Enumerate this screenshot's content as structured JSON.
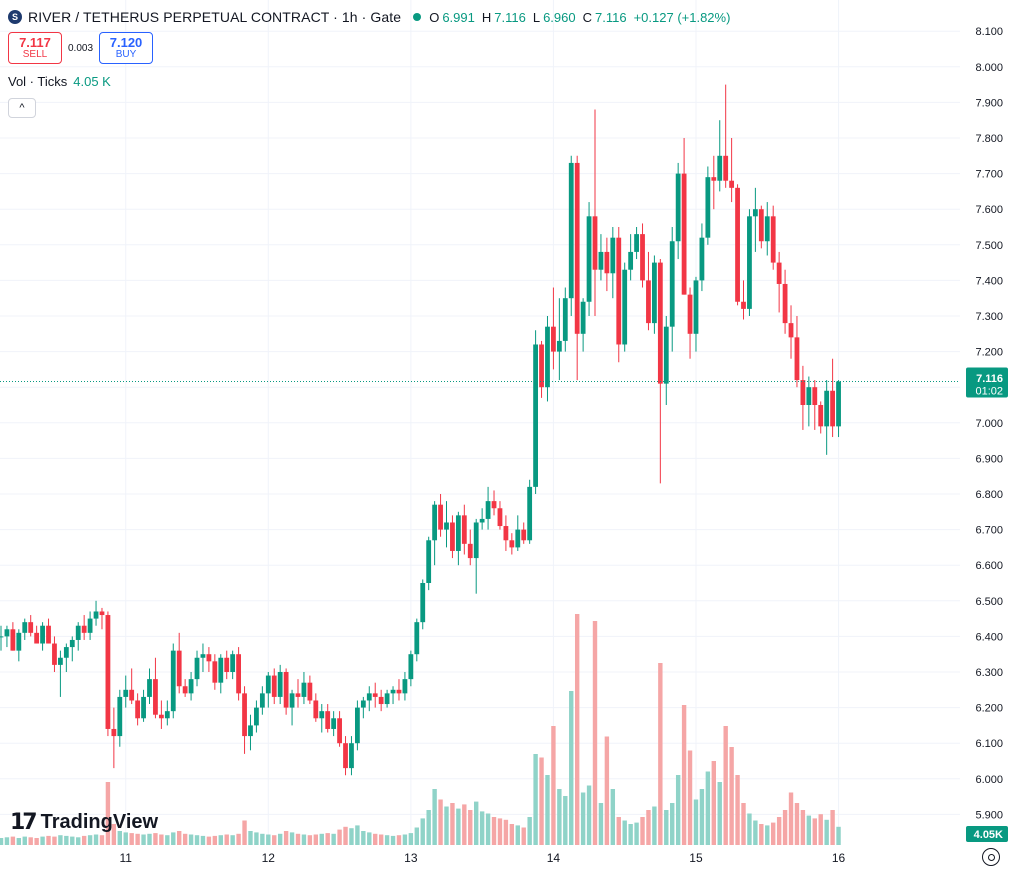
{
  "header": {
    "title": "RIVER / TETHERUS PERPETUAL CONTRACT · 1h · Gate",
    "ohlc": [
      {
        "k": "O",
        "v": "6.991"
      },
      {
        "k": "H",
        "v": "7.116"
      },
      {
        "k": "L",
        "v": "6.960"
      },
      {
        "k": "C",
        "v": "7.116"
      }
    ],
    "change": "+0.127 (+1.82%)"
  },
  "trade": {
    "sell_price": "7.117",
    "sell_label": "SELL",
    "spread": "0.003",
    "buy_price": "7.120",
    "buy_label": "BUY"
  },
  "volume_legend": {
    "label": "Vol · Ticks",
    "value": "4.05 K"
  },
  "collapse_icon": "^",
  "logo": {
    "mark": "17",
    "text": "TradingView"
  },
  "price_tag": {
    "price": "7.116",
    "countdown": "01:02"
  },
  "volume_tag": "4.05K",
  "colors": {
    "up": "#089981",
    "down": "#f23645",
    "vol_up": "#8fd3c8",
    "vol_down": "#f5a6a6"
  },
  "chart_data": {
    "type": "candlestick",
    "y_ticks": [
      "5.900",
      "6.000",
      "6.100",
      "6.200",
      "6.300",
      "6.400",
      "6.500",
      "6.600",
      "6.700",
      "6.800",
      "6.900",
      "7.000",
      "7.100",
      "7.200",
      "7.300",
      "7.400",
      "7.500",
      "7.600",
      "7.700",
      "7.800",
      "7.900",
      "8.000",
      "8.100"
    ],
    "ylim": [
      5.87,
      8.1
    ],
    "x_ticks": [
      {
        "label": "11",
        "index": 21
      },
      {
        "label": "12",
        "index": 45
      },
      {
        "label": "13",
        "index": 69
      },
      {
        "label": "14",
        "index": 93
      },
      {
        "label": "15",
        "index": 117
      },
      {
        "label": "16",
        "index": 141
      }
    ],
    "candles": [
      [
        6.4,
        6.43,
        6.36,
        6.4,
        1.0
      ],
      [
        6.4,
        6.43,
        6.37,
        6.42,
        1.1
      ],
      [
        6.42,
        6.44,
        6.36,
        6.36,
        1.2
      ],
      [
        6.36,
        6.42,
        6.33,
        6.41,
        1.0
      ],
      [
        6.41,
        6.45,
        6.39,
        6.44,
        1.2
      ],
      [
        6.44,
        6.46,
        6.4,
        6.41,
        1.1
      ],
      [
        6.41,
        6.43,
        6.38,
        6.38,
        1.0
      ],
      [
        6.38,
        6.44,
        6.36,
        6.43,
        1.2
      ],
      [
        6.43,
        6.45,
        6.38,
        6.38,
        1.3
      ],
      [
        6.38,
        6.4,
        6.3,
        6.32,
        1.2
      ],
      [
        6.32,
        6.36,
        6.23,
        6.34,
        1.4
      ],
      [
        6.34,
        6.38,
        6.3,
        6.37,
        1.3
      ],
      [
        6.37,
        6.4,
        6.33,
        6.39,
        1.2
      ],
      [
        6.39,
        6.44,
        6.36,
        6.43,
        1.1
      ],
      [
        6.43,
        6.46,
        6.39,
        6.41,
        1.3
      ],
      [
        6.41,
        6.47,
        6.39,
        6.45,
        1.4
      ],
      [
        6.45,
        6.5,
        6.43,
        6.47,
        1.5
      ],
      [
        6.47,
        6.48,
        6.42,
        6.46,
        1.4
      ],
      [
        6.46,
        6.47,
        6.12,
        6.14,
        9.0
      ],
      [
        6.14,
        6.2,
        6.03,
        6.12,
        3.0
      ],
      [
        6.12,
        6.25,
        6.09,
        6.23,
        2.0
      ],
      [
        6.23,
        6.29,
        6.2,
        6.25,
        1.8
      ],
      [
        6.25,
        6.31,
        6.21,
        6.22,
        1.7
      ],
      [
        6.22,
        6.24,
        6.15,
        6.17,
        1.6
      ],
      [
        6.17,
        6.25,
        6.16,
        6.23,
        1.5
      ],
      [
        6.23,
        6.31,
        6.21,
        6.28,
        1.6
      ],
      [
        6.28,
        6.34,
        6.17,
        6.18,
        1.7
      ],
      [
        6.18,
        6.22,
        6.14,
        6.17,
        1.5
      ],
      [
        6.17,
        6.22,
        6.15,
        6.19,
        1.4
      ],
      [
        6.19,
        6.38,
        6.17,
        6.36,
        1.8
      ],
      [
        6.36,
        6.41,
        6.24,
        6.26,
        2.0
      ],
      [
        6.26,
        6.28,
        6.23,
        6.24,
        1.6
      ],
      [
        6.24,
        6.3,
        6.22,
        6.28,
        1.5
      ],
      [
        6.28,
        6.36,
        6.26,
        6.34,
        1.4
      ],
      [
        6.34,
        6.38,
        6.3,
        6.35,
        1.3
      ],
      [
        6.35,
        6.37,
        6.3,
        6.33,
        1.2
      ],
      [
        6.33,
        6.35,
        6.25,
        6.27,
        1.3
      ],
      [
        6.27,
        6.35,
        6.24,
        6.34,
        1.4
      ],
      [
        6.34,
        6.36,
        6.28,
        6.3,
        1.5
      ],
      [
        6.3,
        6.36,
        6.28,
        6.35,
        1.4
      ],
      [
        6.35,
        6.37,
        6.22,
        6.24,
        1.6
      ],
      [
        6.24,
        6.26,
        6.07,
        6.12,
        3.5
      ],
      [
        6.12,
        6.18,
        6.08,
        6.15,
        2.0
      ],
      [
        6.15,
        6.22,
        6.13,
        6.2,
        1.8
      ],
      [
        6.2,
        6.26,
        6.18,
        6.24,
        1.6
      ],
      [
        6.24,
        6.3,
        6.2,
        6.29,
        1.5
      ],
      [
        6.29,
        6.31,
        6.21,
        6.23,
        1.4
      ],
      [
        6.23,
        6.32,
        6.21,
        6.3,
        1.6
      ],
      [
        6.3,
        6.31,
        6.18,
        6.2,
        2.0
      ],
      [
        6.2,
        6.25,
        6.15,
        6.24,
        1.8
      ],
      [
        6.24,
        6.28,
        6.2,
        6.23,
        1.6
      ],
      [
        6.23,
        6.3,
        6.21,
        6.27,
        1.5
      ],
      [
        6.27,
        6.29,
        6.21,
        6.22,
        1.4
      ],
      [
        6.22,
        6.24,
        6.16,
        6.17,
        1.5
      ],
      [
        6.17,
        6.21,
        6.13,
        6.19,
        1.6
      ],
      [
        6.19,
        6.21,
        6.13,
        6.14,
        1.7
      ],
      [
        6.14,
        6.19,
        6.12,
        6.17,
        1.6
      ],
      [
        6.17,
        6.19,
        6.09,
        6.1,
        2.2
      ],
      [
        6.1,
        6.12,
        6.01,
        6.03,
        2.6
      ],
      [
        6.03,
        6.12,
        6.01,
        6.1,
        2.4
      ],
      [
        6.1,
        6.22,
        6.08,
        6.2,
        2.8
      ],
      [
        6.2,
        6.23,
        6.17,
        6.22,
        2.0
      ],
      [
        6.22,
        6.26,
        6.19,
        6.24,
        1.8
      ],
      [
        6.24,
        6.27,
        6.2,
        6.23,
        1.6
      ],
      [
        6.23,
        6.25,
        6.19,
        6.21,
        1.5
      ],
      [
        6.21,
        6.25,
        6.2,
        6.24,
        1.4
      ],
      [
        6.24,
        6.26,
        6.21,
        6.25,
        1.3
      ],
      [
        6.25,
        6.28,
        6.22,
        6.24,
        1.4
      ],
      [
        6.24,
        6.3,
        6.22,
        6.28,
        1.5
      ],
      [
        6.28,
        6.36,
        6.26,
        6.35,
        1.7
      ],
      [
        6.35,
        6.45,
        6.33,
        6.44,
        2.5
      ],
      [
        6.44,
        6.56,
        6.42,
        6.55,
        3.8
      ],
      [
        6.55,
        6.68,
        6.53,
        6.67,
        5.0
      ],
      [
        6.67,
        6.78,
        6.6,
        6.77,
        8.0
      ],
      [
        6.77,
        6.8,
        6.68,
        6.7,
        6.5
      ],
      [
        6.7,
        6.78,
        6.65,
        6.72,
        5.5
      ],
      [
        6.72,
        6.74,
        6.62,
        6.64,
        6.0
      ],
      [
        6.64,
        6.75,
        6.6,
        6.74,
        5.2
      ],
      [
        6.74,
        6.77,
        6.63,
        6.66,
        5.8
      ],
      [
        6.66,
        6.7,
        6.6,
        6.62,
        5.0
      ],
      [
        6.62,
        6.73,
        6.52,
        6.72,
        6.2
      ],
      [
        6.72,
        6.76,
        6.7,
        6.73,
        4.8
      ],
      [
        6.73,
        6.82,
        6.7,
        6.78,
        4.5
      ],
      [
        6.78,
        6.81,
        6.74,
        6.76,
        4.0
      ],
      [
        6.76,
        6.78,
        6.7,
        6.71,
        3.8
      ],
      [
        6.71,
        6.74,
        6.64,
        6.67,
        3.6
      ],
      [
        6.67,
        6.69,
        6.63,
        6.65,
        3.0
      ],
      [
        6.65,
        6.74,
        6.64,
        6.7,
        2.8
      ],
      [
        6.7,
        6.72,
        6.66,
        6.67,
        2.5
      ],
      [
        6.67,
        6.84,
        6.66,
        6.82,
        4.0
      ],
      [
        6.82,
        7.26,
        6.8,
        7.22,
        13.0
      ],
      [
        7.22,
        7.23,
        7.07,
        7.1,
        12.5
      ],
      [
        7.1,
        7.3,
        7.06,
        7.27,
        10.0
      ],
      [
        7.27,
        7.38,
        7.15,
        7.2,
        17.0
      ],
      [
        7.2,
        7.35,
        7.12,
        7.23,
        8.0
      ],
      [
        7.23,
        7.38,
        7.2,
        7.35,
        7.0
      ],
      [
        7.35,
        7.75,
        7.3,
        7.73,
        22.0
      ],
      [
        7.73,
        7.75,
        7.12,
        7.25,
        33.0
      ],
      [
        7.25,
        7.35,
        7.2,
        7.34,
        7.5
      ],
      [
        7.34,
        7.62,
        7.3,
        7.58,
        8.5
      ],
      [
        7.58,
        7.88,
        7.3,
        7.43,
        32.0
      ],
      [
        7.43,
        7.53,
        7.4,
        7.48,
        6.0
      ],
      [
        7.48,
        7.52,
        7.37,
        7.42,
        15.5
      ],
      [
        7.42,
        7.55,
        7.35,
        7.52,
        8.0
      ],
      [
        7.52,
        7.55,
        7.17,
        7.22,
        4.0
      ],
      [
        7.22,
        7.45,
        7.2,
        7.43,
        3.5
      ],
      [
        7.43,
        7.53,
        7.4,
        7.48,
        3.0
      ],
      [
        7.48,
        7.55,
        7.46,
        7.53,
        3.2
      ],
      [
        7.53,
        7.56,
        7.38,
        7.4,
        4.0
      ],
      [
        7.4,
        7.48,
        7.26,
        7.28,
        5.0
      ],
      [
        7.28,
        7.47,
        7.25,
        7.45,
        5.5
      ],
      [
        7.45,
        7.46,
        6.83,
        7.11,
        26.0
      ],
      [
        7.11,
        7.3,
        7.05,
        7.27,
        5.0
      ],
      [
        7.27,
        7.55,
        7.2,
        7.51,
        6.0
      ],
      [
        7.51,
        7.73,
        7.46,
        7.7,
        10.0
      ],
      [
        7.7,
        7.8,
        7.36,
        7.36,
        20.0
      ],
      [
        7.36,
        7.38,
        7.18,
        7.25,
        13.5
      ],
      [
        7.25,
        7.41,
        7.2,
        7.4,
        6.5
      ],
      [
        7.4,
        7.56,
        7.37,
        7.52,
        8.0
      ],
      [
        7.52,
        7.72,
        7.5,
        7.69,
        10.5
      ],
      [
        7.69,
        7.75,
        7.6,
        7.68,
        12.0
      ],
      [
        7.68,
        7.85,
        7.65,
        7.75,
        9.0
      ],
      [
        7.75,
        7.95,
        7.66,
        7.68,
        17.0
      ],
      [
        7.68,
        7.8,
        7.62,
        7.66,
        14.0
      ],
      [
        7.66,
        7.67,
        7.33,
        7.34,
        10.0
      ],
      [
        7.34,
        7.4,
        7.29,
        7.32,
        6.0
      ],
      [
        7.32,
        7.6,
        7.3,
        7.58,
        4.5
      ],
      [
        7.58,
        7.66,
        7.48,
        7.6,
        3.5
      ],
      [
        7.6,
        7.61,
        7.49,
        7.51,
        3.0
      ],
      [
        7.51,
        7.62,
        7.47,
        7.58,
        2.8
      ],
      [
        7.58,
        7.61,
        7.43,
        7.45,
        3.2
      ],
      [
        7.45,
        7.48,
        7.31,
        7.39,
        4.0
      ],
      [
        7.39,
        7.43,
        7.25,
        7.28,
        5.0
      ],
      [
        7.28,
        7.33,
        7.18,
        7.24,
        7.5
      ],
      [
        7.24,
        7.3,
        7.1,
        7.12,
        6.0
      ],
      [
        7.12,
        7.16,
        6.98,
        7.05,
        5.0
      ],
      [
        7.05,
        7.13,
        6.99,
        7.1,
        4.2
      ],
      [
        7.1,
        7.12,
        6.98,
        7.05,
        3.8
      ],
      [
        7.05,
        7.06,
        6.97,
        6.99,
        4.4
      ],
      [
        6.99,
        7.12,
        6.91,
        7.09,
        3.6
      ],
      [
        7.09,
        7.18,
        6.96,
        6.99,
        5.0
      ],
      [
        6.99,
        7.12,
        6.96,
        7.116,
        2.6
      ]
    ]
  }
}
